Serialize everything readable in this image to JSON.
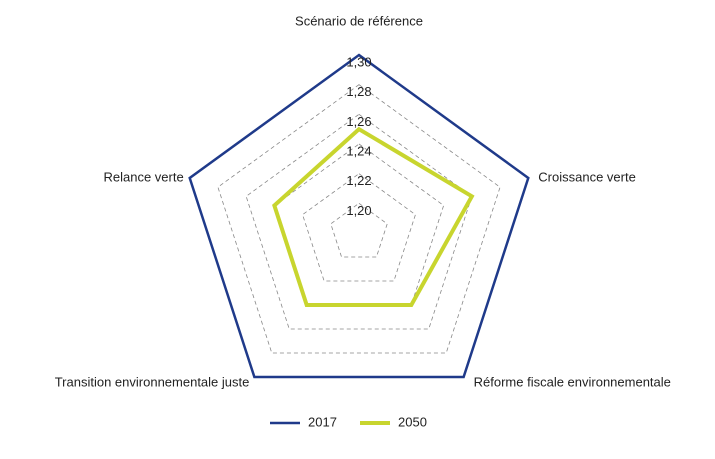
{
  "chart_data": {
    "type": "radar",
    "categories": [
      "Scénario de référence",
      "Croissance verte",
      "Réforme fiscale environnementale",
      "Transition environnementale juste",
      "Relance verte"
    ],
    "series": [
      {
        "name": "2017",
        "color": "#1f3a8a",
        "values": [
          1.3,
          1.3,
          1.3,
          1.3,
          1.3
        ]
      },
      {
        "name": "2050",
        "color": "#c8d52e",
        "values": [
          1.25,
          1.26,
          1.24,
          1.24,
          1.24
        ]
      }
    ],
    "ylim": [
      1.18,
      1.3
    ],
    "yticks": [
      {
        "value": 1.2,
        "label": "1,20"
      },
      {
        "value": 1.22,
        "label": "1,22"
      },
      {
        "value": 1.24,
        "label": "1,24"
      },
      {
        "value": 1.26,
        "label": "1,26"
      },
      {
        "value": 1.28,
        "label": "1,28"
      },
      {
        "value": 1.3,
        "label": "1,30"
      }
    ],
    "grid": true,
    "legend": "bottom"
  }
}
